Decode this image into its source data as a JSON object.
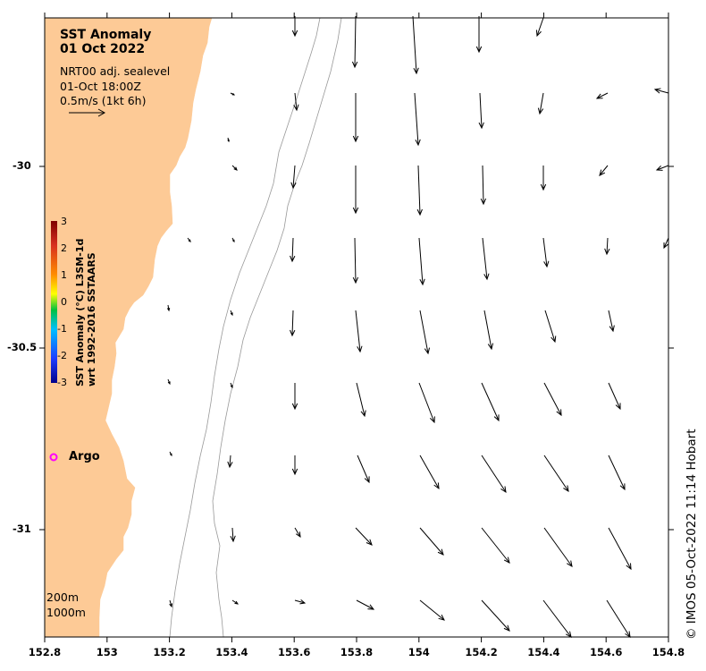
{
  "title": {
    "line1": "SST Anomaly",
    "line2": "01 Oct 2022"
  },
  "subtitle": {
    "source": "NRT00 adj. sealevel",
    "time": "01-Oct 18:00Z",
    "vector_scale": "0.5m/s (1kt 6h)"
  },
  "colorbar": {
    "ticks": [
      "3",
      "2",
      "1",
      "0",
      "-1",
      "-2",
      "-3"
    ],
    "label_line1": "SST Anomaly (°C) L3SM-1d",
    "label_line2": "wrt 1992-2016 SSTAARS",
    "colors": [
      "#7f0000",
      "#d7301f",
      "#ff8c00",
      "#ffff00",
      "#00c040",
      "#00c0ff",
      "#1e3cff",
      "#00008b"
    ]
  },
  "axes": {
    "y_ticks": [
      "-30",
      "-30.5",
      "-31"
    ],
    "x_ticks": [
      "152.8",
      "153",
      "153.2",
      "153.4",
      "153.6",
      "153.8",
      "154",
      "154.2",
      "154.4",
      "154.6",
      "154.8"
    ],
    "lon_range": [
      152.8,
      154.8
    ],
    "lat_range": [
      -29.6,
      -31.3
    ]
  },
  "legend": {
    "argo_label": "Argo",
    "argo_color": "#ff00ff",
    "isobath_200": "200m",
    "isobath_1000": "1000m"
  },
  "colors": {
    "land": "#fdca96",
    "ocean": "#ffffff",
    "isobath": "#999999"
  },
  "credit": "© IMOS 05-Oct-2022 11:14 Hobart"
}
